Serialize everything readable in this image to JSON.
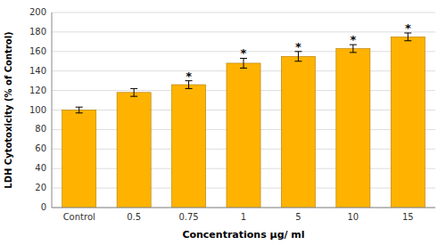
{
  "chart_data": {
    "type": "bar",
    "categories": [
      "Control",
      "0.5",
      "0.75",
      "1",
      "5",
      "10",
      "15"
    ],
    "values": [
      100,
      118,
      126,
      148,
      155,
      163,
      175
    ],
    "errors": [
      3,
      4,
      4,
      5,
      5,
      4,
      4
    ],
    "significance_labels": [
      null,
      null,
      "*",
      "*",
      "*",
      "*",
      "*"
    ],
    "color": "#FFB300",
    "xlabel": "Concentrations μg/ ml",
    "ylabel": "LDH Cytotoxicity (% of Control)",
    "ylim": [
      0,
      200
    ],
    "yticks": [
      0,
      20,
      40,
      60,
      80,
      100,
      120,
      140,
      160,
      180,
      200
    ],
    "grid": true
  }
}
